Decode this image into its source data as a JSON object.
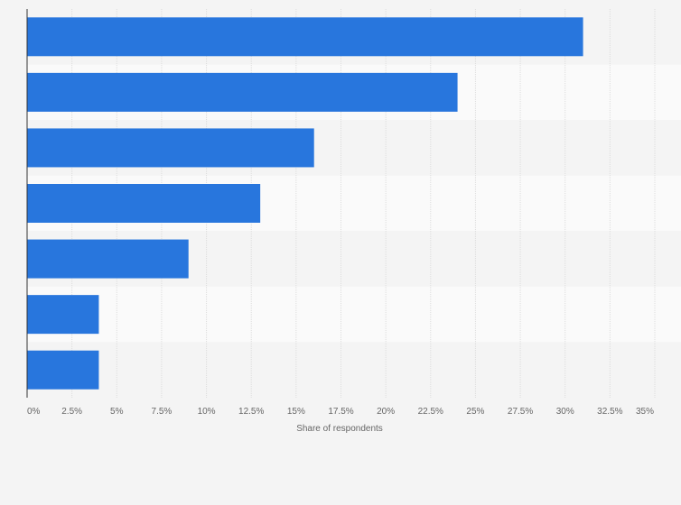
{
  "chart_data": {
    "type": "bar",
    "orientation": "horizontal",
    "categories": [
      "",
      "",
      "",
      "",
      "",
      "",
      ""
    ],
    "values": [
      31,
      24,
      16,
      13,
      9,
      4,
      4
    ],
    "xlabel": "Share of respondents",
    "ylabel": "",
    "xlim": [
      0,
      35
    ],
    "ticks": [
      0,
      2.5,
      5,
      7.5,
      10,
      12.5,
      15,
      17.5,
      20,
      22.5,
      25,
      27.5,
      30,
      32.5,
      35
    ],
    "tick_labels": [
      "0%",
      "2.5%",
      "5%",
      "7.5%",
      "10%",
      "12.5%",
      "15%",
      "17.5%",
      "20%",
      "22.5%",
      "25%",
      "27.5%",
      "30%",
      "32.5%",
      "35%"
    ],
    "grid": true,
    "colors": {
      "bar": "#2876dd",
      "background": "#f4f4f4",
      "band_light": "#fafafa",
      "band_dark": "#f4f4f4",
      "grid": "#dddddd",
      "axis": "#333333"
    }
  }
}
